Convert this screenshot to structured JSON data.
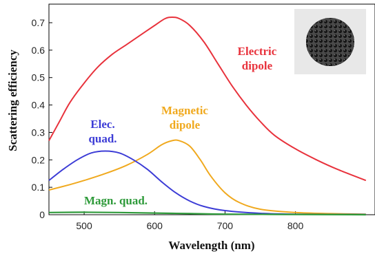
{
  "chart_data": {
    "type": "line",
    "title": "",
    "xlabel": "Wavelength (nm)",
    "ylabel": "Scattering efficiency",
    "xlim": [
      450,
      900
    ],
    "ylim": [
      0,
      0.75
    ],
    "x_ticks": [
      "500",
      "600",
      "700",
      "800"
    ],
    "y_ticks": [
      "0",
      "0.1",
      "0.2",
      "0.3",
      "0.4",
      "0.5",
      "0.6",
      "0.7"
    ],
    "grid": false,
    "legend": "inline labels",
    "inset": "particle cluster micrograph",
    "series": [
      {
        "name": "Electric dipole",
        "label_lines": [
          "Electric",
          "dipole"
        ],
        "color": "#e8323c",
        "points": [
          [
            450,
            0.27
          ],
          [
            465,
            0.34
          ],
          [
            480,
            0.41
          ],
          [
            500,
            0.48
          ],
          [
            520,
            0.54
          ],
          [
            540,
            0.585
          ],
          [
            560,
            0.62
          ],
          [
            580,
            0.655
          ],
          [
            600,
            0.69
          ],
          [
            615,
            0.715
          ],
          [
            625,
            0.72
          ],
          [
            635,
            0.715
          ],
          [
            650,
            0.69
          ],
          [
            670,
            0.63
          ],
          [
            690,
            0.55
          ],
          [
            710,
            0.47
          ],
          [
            730,
            0.4
          ],
          [
            750,
            0.34
          ],
          [
            770,
            0.29
          ],
          [
            800,
            0.24
          ],
          [
            830,
            0.2
          ],
          [
            860,
            0.165
          ],
          [
            900,
            0.125
          ]
        ]
      },
      {
        "name": "Magnetic dipole",
        "label_lines": [
          "Magnetic",
          "dipole"
        ],
        "color": "#f0a91e",
        "points": [
          [
            450,
            0.09
          ],
          [
            480,
            0.11
          ],
          [
            500,
            0.125
          ],
          [
            530,
            0.15
          ],
          [
            560,
            0.18
          ],
          [
            590,
            0.22
          ],
          [
            610,
            0.255
          ],
          [
            625,
            0.27
          ],
          [
            635,
            0.27
          ],
          [
            650,
            0.25
          ],
          [
            665,
            0.2
          ],
          [
            680,
            0.14
          ],
          [
            700,
            0.08
          ],
          [
            720,
            0.045
          ],
          [
            750,
            0.02
          ],
          [
            800,
            0.008
          ],
          [
            850,
            0.004
          ],
          [
            900,
            0.002
          ]
        ]
      },
      {
        "name": "Elec. quad.",
        "label_lines": [
          "Elec.",
          "quad."
        ],
        "color": "#3c3cd6",
        "points": [
          [
            450,
            0.125
          ],
          [
            470,
            0.165
          ],
          [
            490,
            0.2
          ],
          [
            510,
            0.225
          ],
          [
            530,
            0.232
          ],
          [
            550,
            0.225
          ],
          [
            570,
            0.2
          ],
          [
            590,
            0.165
          ],
          [
            610,
            0.12
          ],
          [
            630,
            0.08
          ],
          [
            650,
            0.05
          ],
          [
            670,
            0.03
          ],
          [
            700,
            0.015
          ],
          [
            750,
            0.005
          ],
          [
            800,
            0.002
          ],
          [
            900,
            0.001
          ]
        ]
      },
      {
        "name": "Magn. quad.",
        "label_lines": [
          "Magn. quad."
        ],
        "color": "#2e9a3a",
        "points": [
          [
            450,
            0.008
          ],
          [
            500,
            0.009
          ],
          [
            550,
            0.008
          ],
          [
            600,
            0.006
          ],
          [
            650,
            0.004
          ],
          [
            700,
            0.002
          ],
          [
            800,
            0.001
          ],
          [
            900,
            0.0
          ]
        ]
      }
    ]
  }
}
